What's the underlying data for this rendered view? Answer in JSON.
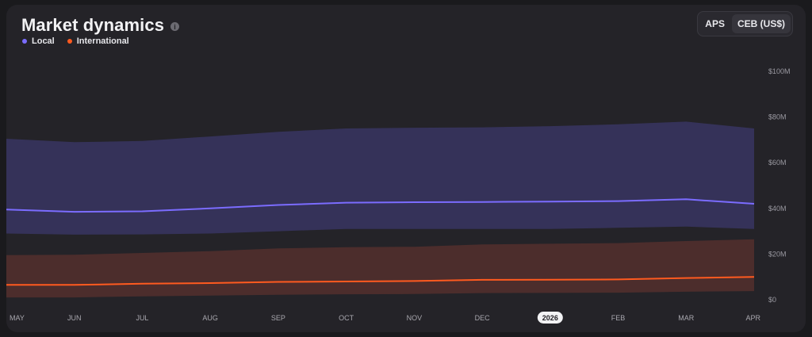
{
  "header": {
    "title": "Market dynamics",
    "info_icon": "info-icon"
  },
  "legend": [
    {
      "label": "Local",
      "color": "#7b6cff"
    },
    {
      "label": "International",
      "color": "#ff5a1f"
    }
  ],
  "toggle": {
    "options": [
      "APS",
      "CEB (US$)"
    ],
    "active": "CEB (US$)"
  },
  "chart_data": {
    "type": "area",
    "categories": [
      "MAY",
      "JUN",
      "JUL",
      "AUG",
      "SEP",
      "OCT",
      "NOV",
      "DEC",
      "2026",
      "FEB",
      "MAR",
      "APR"
    ],
    "highlighted_category": "2026",
    "yticks": [
      "$0",
      "$20M",
      "$40M",
      "$60M",
      "$80M",
      "$100M"
    ],
    "ylim": [
      0,
      100
    ],
    "grid": false,
    "legend_position": "top-left",
    "series": [
      {
        "name": "Local",
        "color": "#7b6cff",
        "band_color": "#353259",
        "values": [
          39.5,
          38.5,
          38.7,
          40,
          41.5,
          42.5,
          42.7,
          42.8,
          43,
          43.2,
          44,
          42
        ],
        "upper": [
          70.5,
          69,
          69.5,
          71.5,
          73.5,
          75,
          75.3,
          75.5,
          76,
          76.8,
          78,
          75
        ],
        "lower": [
          29,
          28.5,
          28.6,
          29,
          30,
          31,
          31,
          31,
          31,
          31.5,
          32,
          31
        ]
      },
      {
        "name": "International",
        "color": "#ff5a1f",
        "band_color": "#4c2d2c",
        "values": [
          6.5,
          6.5,
          7,
          7.3,
          7.8,
          8,
          8.2,
          8.7,
          8.8,
          8.9,
          9.5,
          10
        ],
        "upper": [
          19.5,
          19.7,
          20.5,
          21.3,
          22.5,
          23,
          23.2,
          24.2,
          24.5,
          24.8,
          25.7,
          26.5
        ],
        "lower": [
          1,
          1,
          1.5,
          1.8,
          2.2,
          2.4,
          2.5,
          2.9,
          3,
          3.1,
          3.5,
          3.8
        ]
      }
    ]
  }
}
